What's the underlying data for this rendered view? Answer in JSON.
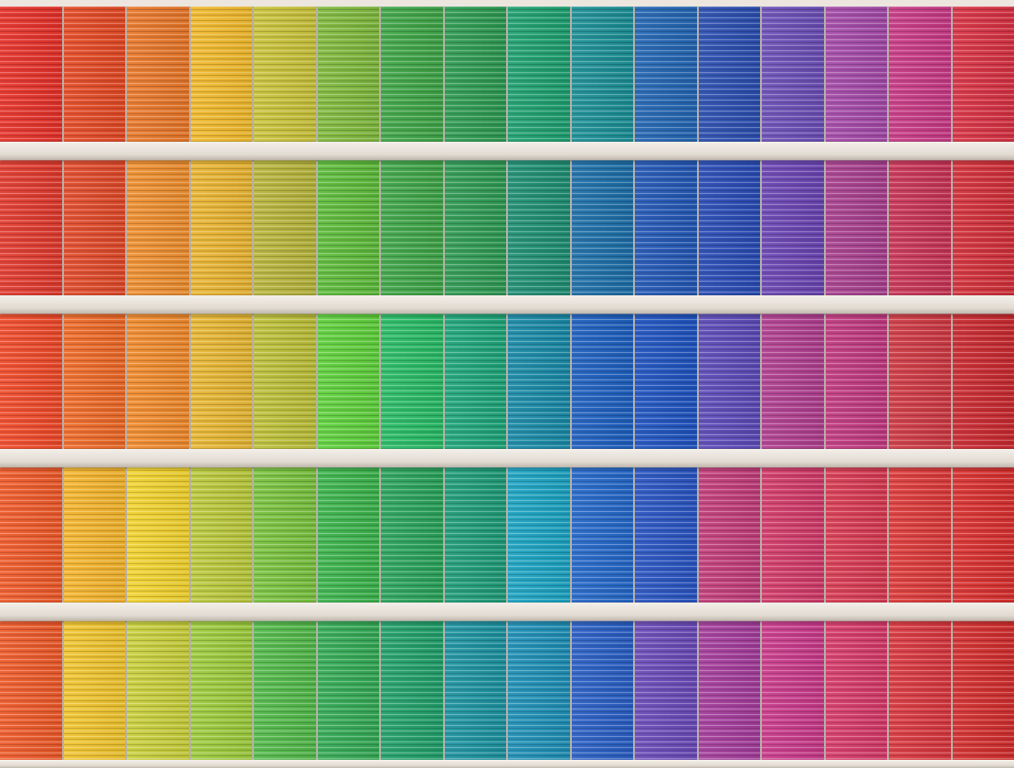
{
  "image": {
    "subject": "building-facade-colored-blinds",
    "rows": [
      [
        "#e6322a",
        "#e44a25",
        "#e8772a",
        "#f0b92c",
        "#c9c23a",
        "#7fb83d",
        "#3fa547",
        "#2e9a52",
        "#1fa071",
        "#1c8f96",
        "#2466b3",
        "#2c4fb0",
        "#6b4fb6",
        "#a44aa8",
        "#c83a86",
        "#d83244"
      ],
      [
        "#e13a2e",
        "#e14a2a",
        "#ee8e2e",
        "#e9b431",
        "#b7b43b",
        "#5dbb3a",
        "#3fa548",
        "#2f9a54",
        "#1f8f74",
        "#1e6fa8",
        "#2458b6",
        "#2a4cb5",
        "#6a45b2",
        "#a8408f",
        "#c83456",
        "#d3303a"
      ],
      [
        "#ef4a2a",
        "#ee6a28",
        "#f08a2c",
        "#e7b632",
        "#bcbf38",
        "#5fd03c",
        "#29bb66",
        "#1fa57a",
        "#1a8aa7",
        "#1f60bf",
        "#2054c0",
        "#5d4bb8",
        "#b03f90",
        "#c13a80",
        "#cf3a44",
        "#c92a30"
      ],
      [
        "#ef5a2a",
        "#f4b42c",
        "#f1d22e",
        "#b9c93b",
        "#79c23e",
        "#3cb34c",
        "#2aa35b",
        "#1f9c78",
        "#1ca3c2",
        "#2568c8",
        "#2a55c2",
        "#c23d7a",
        "#d23a6a",
        "#d83a52",
        "#dd3a3a",
        "#d9302f"
      ],
      [
        "#ee5a2a",
        "#f0c42e",
        "#c8cf3b",
        "#9ccb3c",
        "#53b94a",
        "#34aa55",
        "#22a06a",
        "#1d93a0",
        "#1f8fb6",
        "#2a5fc4",
        "#6b4bb8",
        "#a43d9c",
        "#c93a8a",
        "#d63a6a",
        "#d9383f",
        "#d32e2e"
      ]
    ]
  }
}
